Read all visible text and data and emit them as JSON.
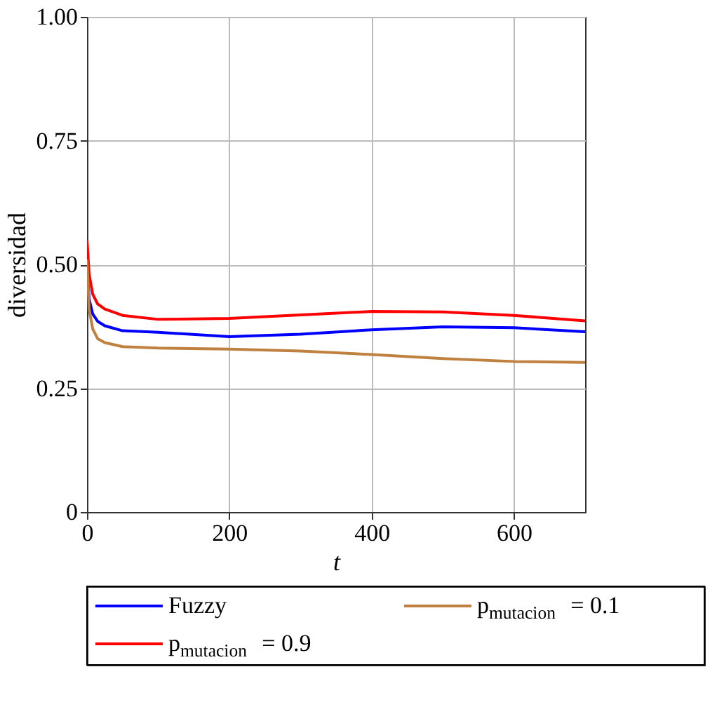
{
  "chart_data": {
    "type": "line",
    "xlabel": "t",
    "ylabel": "diversidad",
    "xlim": [
      0,
      700
    ],
    "ylim": [
      0,
      1
    ],
    "xticks": [
      0,
      200,
      400,
      600
    ],
    "yticks": [
      0,
      {
        "value": 0.25,
        "label": "0.25"
      },
      {
        "value": 0.5,
        "label": "0.50"
      },
      {
        "value": 0.75,
        "label": "0.75"
      },
      {
        "value": 1,
        "label": "1.00"
      }
    ],
    "grid": true,
    "legend": "bottom",
    "marker": "none",
    "line_style": "solid",
    "x": [
      0,
      3,
      8,
      15,
      25,
      50,
      100,
      200,
      300,
      400,
      500,
      600,
      700
    ],
    "series": [
      {
        "name": "Fuzzy",
        "color": "#0000ff",
        "values": [
          0.5,
          0.43,
          0.4,
          0.385,
          0.376,
          0.366,
          0.363,
          0.354,
          0.359,
          0.368,
          0.374,
          0.372,
          0.364
        ]
      },
      {
        "name": "p$_{mutacion}$ = 0.9",
        "color": "#ff0000",
        "values": [
          0.55,
          0.48,
          0.44,
          0.42,
          0.41,
          0.397,
          0.389,
          0.391,
          0.398,
          0.405,
          0.404,
          0.397,
          0.386
        ]
      },
      {
        "name": "p$_{mutacion}$ = 0.1",
        "color": "#bf8040",
        "values": [
          0.51,
          0.41,
          0.37,
          0.35,
          0.342,
          0.334,
          0.331,
          0.329,
          0.325,
          0.318,
          0.31,
          0.304,
          0.302
        ]
      }
    ]
  }
}
